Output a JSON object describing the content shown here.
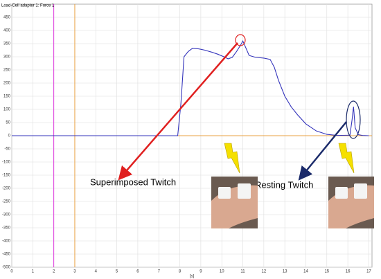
{
  "chart_data": {
    "type": "line",
    "title": "Load-Cell adapter 1: Force 1",
    "x_label": "[s]",
    "x": [
      0,
      7.9,
      8.05,
      8.2,
      8.4,
      8.6,
      8.9,
      9.2,
      9.5,
      9.8,
      10.1,
      10.3,
      10.5,
      10.7,
      10.9,
      11.0,
      11.1,
      11.3,
      11.6,
      12.0,
      12.3,
      12.5,
      12.7,
      13.0,
      13.3,
      13.6,
      14.0,
      14.5,
      15.0,
      15.5,
      16.1,
      16.2,
      16.27,
      16.35,
      16.5,
      16.7,
      17.0
    ],
    "series": [
      {
        "name": "Force 1",
        "color": "#3333bb",
        "values": [
          0,
          0,
          120,
          300,
          320,
          332,
          330,
          325,
          318,
          310,
          300,
          292,
          298,
          320,
          345,
          360,
          342,
          305,
          298,
          295,
          290,
          260,
          210,
          150,
          110,
          80,
          45,
          18,
          5,
          1,
          2,
          60,
          110,
          30,
          4,
          1,
          0
        ]
      }
    ],
    "xlim": [
      0,
      17.15
    ],
    "ylim": [
      -500,
      500
    ],
    "xticks": [
      0,
      1,
      2,
      3,
      4,
      5,
      6,
      7,
      8,
      9,
      10,
      11,
      12,
      13,
      14,
      15,
      16,
      17
    ],
    "yticks": [
      -500,
      -450,
      -400,
      -350,
      -300,
      -250,
      -200,
      -150,
      -100,
      -50,
      0,
      50,
      100,
      150,
      200,
      250,
      300,
      350,
      400,
      450
    ],
    "grid": true,
    "vlines": [
      {
        "x": 2,
        "color": "#dd33dd"
      },
      {
        "x": 3,
        "color": "#e8a040"
      }
    ],
    "hline": {
      "y": 0,
      "color": "#e8a040"
    },
    "annotations": [
      "Superimposed Twitch",
      "Resting Twitch"
    ]
  }
}
